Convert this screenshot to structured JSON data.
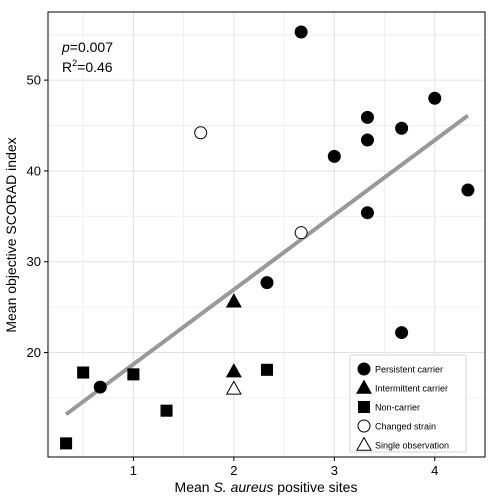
{
  "chart_data": {
    "type": "scatter",
    "xlabel_prefix": "Mean ",
    "xlabel_italic": "S. aureus",
    "xlabel_suffix": " positive sites",
    "ylabel": "Mean objective SCORAD index",
    "xlim": [
      0.15,
      4.5
    ],
    "ylim": [
      8.5,
      57.5
    ],
    "xticks": [
      1,
      2,
      3,
      4
    ],
    "yticks": [
      20,
      30,
      40,
      50
    ],
    "grid": true,
    "stats": {
      "p_label": "p",
      "p_value": "=0.007",
      "r2_label": "R",
      "r2_sup": "2",
      "r2_value": "=0.46"
    },
    "regression": {
      "x": [
        0.33,
        4.33
      ],
      "y": [
        13.2,
        46.1
      ],
      "color": "#999999"
    },
    "legend_position": "bottom-right",
    "series": [
      {
        "name": "Persistent carrier",
        "marker": "circle",
        "filled": true,
        "points": [
          [
            0.67,
            16.2
          ],
          [
            2.33,
            27.7
          ],
          [
            2.67,
            55.3
          ],
          [
            3.0,
            41.6
          ],
          [
            3.33,
            45.9
          ],
          [
            3.33,
            43.4
          ],
          [
            3.33,
            35.4
          ],
          [
            3.67,
            44.7
          ],
          [
            3.67,
            22.2
          ],
          [
            4.0,
            48.0
          ],
          [
            4.33,
            37.9
          ]
        ]
      },
      {
        "name": "Intermittent carrier",
        "marker": "triangle",
        "filled": true,
        "points": [
          [
            2.0,
            25.6
          ],
          [
            2.0,
            17.9
          ]
        ]
      },
      {
        "name": "Non-carrier",
        "marker": "square",
        "filled": true,
        "points": [
          [
            0.33,
            10.0
          ],
          [
            0.5,
            17.8
          ],
          [
            1.0,
            17.6
          ],
          [
            1.33,
            13.6
          ],
          [
            2.33,
            18.1
          ]
        ]
      },
      {
        "name": "Changed strain",
        "marker": "circle",
        "filled": false,
        "points": [
          [
            1.67,
            44.2
          ],
          [
            2.67,
            33.2
          ]
        ]
      },
      {
        "name": "Single observation",
        "marker": "triangle",
        "filled": false,
        "points": [
          [
            2.0,
            16.0
          ]
        ]
      }
    ]
  }
}
